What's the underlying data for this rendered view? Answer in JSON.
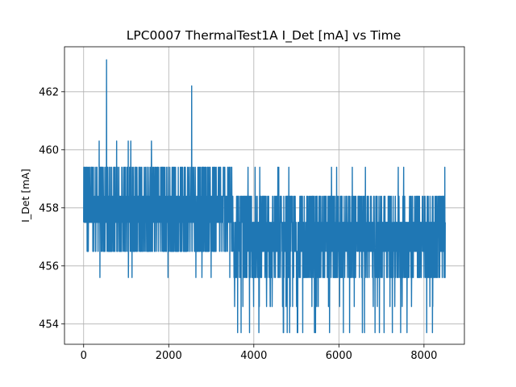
{
  "chart_data": {
    "type": "line",
    "title": "LPC0007 ThermalTest1A I_Det [mA] vs Time",
    "xlabel": "",
    "ylabel": "I_Det [mA]",
    "xlim": [
      -450,
      8950
    ],
    "ylim": [
      453.3,
      463.55
    ],
    "xticks": [
      0,
      2000,
      4000,
      6000,
      8000
    ],
    "yticks": [
      454,
      456,
      458,
      460,
      462
    ],
    "grid": true,
    "line_color": "#1f77b4",
    "series": [
      {
        "x_range": [
          0,
          8500
        ],
        "quantization_levels": [
          453.7,
          454.6,
          455.6,
          456.5,
          457.5,
          458.4,
          459.4,
          460.3,
          461.3,
          462.2,
          463.1
        ],
        "segments": [
          {
            "x_range": [
              0,
              1900
            ],
            "min": 455.6,
            "max": 460.3,
            "dense_min": 456.5,
            "dense_max": 459.4
          },
          {
            "x_range": [
              1900,
              3500
            ],
            "min": 455.6,
            "max": 459.4,
            "dense_min": 456.5,
            "dense_max": 459.4
          },
          {
            "x_range": [
              3500,
              5100
            ],
            "min": 453.7,
            "max": 459.4,
            "dense_min": 455.6,
            "dense_max": 458.4
          },
          {
            "x_range": [
              5100,
              8500
            ],
            "min": 453.7,
            "max": 459.4,
            "dense_min": 455.6,
            "dense_max": 458.4
          }
        ],
        "spikes": [
          {
            "x": 540,
            "y": 463.1
          },
          {
            "x": 2540,
            "y": 462.2
          },
          {
            "x": 3700,
            "y": 453.7
          },
          {
            "x": 3900,
            "y": 453.7
          },
          {
            "x": 5150,
            "y": 453.7
          },
          {
            "x": 5450,
            "y": 453.7
          },
          {
            "x": 5780,
            "y": 453.7
          },
          {
            "x": 6250,
            "y": 453.7
          },
          {
            "x": 6850,
            "y": 453.7
          },
          {
            "x": 7600,
            "y": 453.7
          },
          {
            "x": 8200,
            "y": 453.7
          }
        ]
      }
    ]
  }
}
